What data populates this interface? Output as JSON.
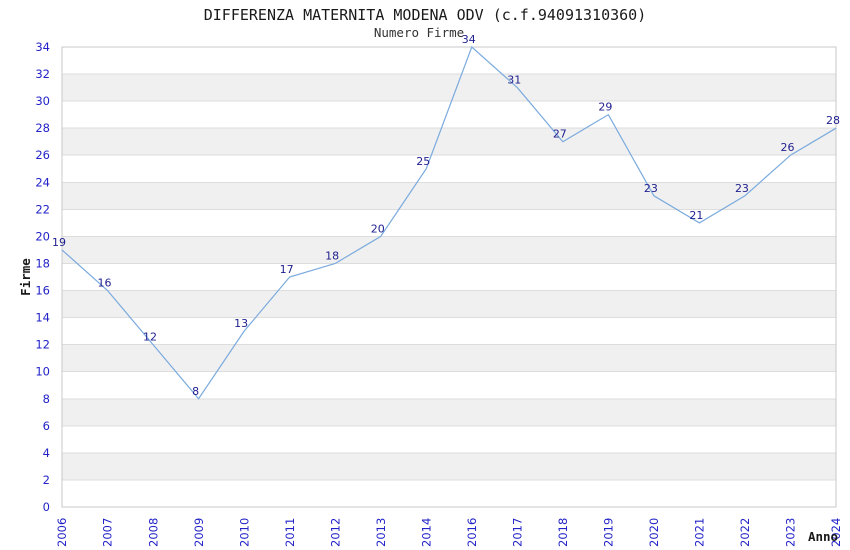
{
  "chart_data": {
    "type": "line",
    "title": "DIFFERENZA MATERNITA MODENA ODV (c.f.94091310360)",
    "subtitle": "Numero Firme",
    "xlabel": "Anno",
    "ylabel": "Firme",
    "categories": [
      "2006",
      "2007",
      "2008",
      "2009",
      "2010",
      "2011",
      "2012",
      "2013",
      "2014",
      "2016",
      "2017",
      "2018",
      "2019",
      "2020",
      "2021",
      "2022",
      "2023",
      "2024"
    ],
    "values": [
      19,
      16,
      12,
      8,
      13,
      17,
      18,
      20,
      25,
      34,
      31,
      27,
      29,
      23,
      21,
      23,
      26,
      28
    ],
    "ylim": [
      0,
      34
    ],
    "ytick_step": 2,
    "xtick_rotation": -90,
    "grid": true,
    "legend_position": "none",
    "band_fill": "alternating horizontal stripes every 2 units",
    "colors": {
      "line": "#7aaade",
      "data_label": "#1f1f8f",
      "tick_label": "#2222c8",
      "stripe": "#f0f0f0",
      "grid": "#dddddd",
      "frame": "#c9c9c9",
      "title": "#1a1a1a",
      "subtitle": "#333333",
      "axis_title": "#1a1a1a"
    }
  }
}
